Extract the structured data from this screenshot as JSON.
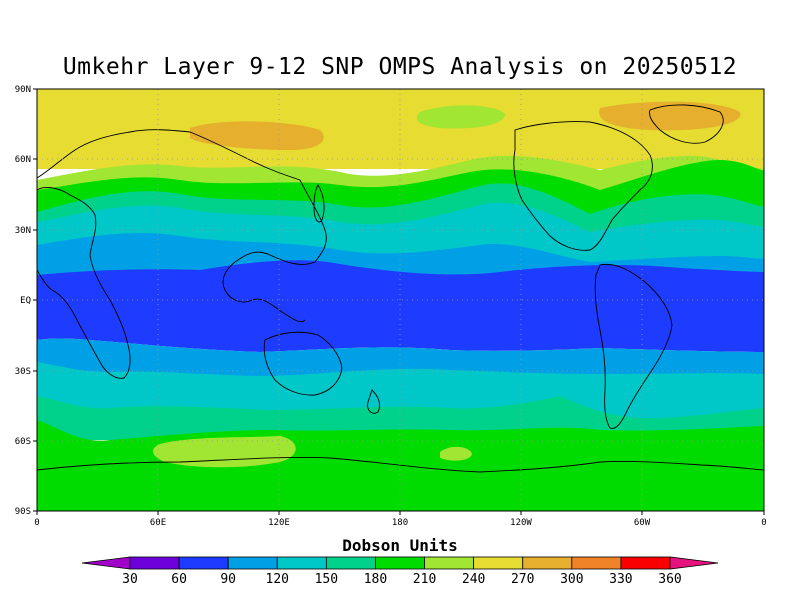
{
  "title": "Umkehr Layer 9-12 SNP OMPS Analysis on 20250512",
  "colorbar": {
    "title": "Dobson Units",
    "labels": [
      "30",
      "60",
      "90",
      "120",
      "150",
      "180",
      "210",
      "240",
      "270",
      "300",
      "330",
      "360"
    ],
    "colors": [
      "#a000c8",
      "#6e00dc",
      "#1e3cff",
      "#00a0e6",
      "#00c8c8",
      "#00d28c",
      "#00dc00",
      "#a0e632",
      "#e6dc32",
      "#e6af2d",
      "#f08228",
      "#fa0000",
      "#e6127d"
    ]
  },
  "axes": {
    "lat_labels": [
      "90N",
      "60N",
      "30N",
      "EQ",
      "30S",
      "60S",
      "90S"
    ],
    "lon_labels": [
      "0",
      "60E",
      "120E",
      "180",
      "120W",
      "60W",
      "0"
    ]
  },
  "chart_data": {
    "type": "heatmap",
    "title": "Umkehr Layer 9-12 SNP OMPS Analysis on 20250512",
    "colorbar_label": "Dobson Units",
    "x_range": [
      0,
      360
    ],
    "y_range": [
      -90,
      90
    ],
    "grid": true,
    "bands": [
      {
        "lat_range": [
          60,
          90
        ],
        "value": 255
      },
      {
        "lat_range": [
          45,
          60
        ],
        "value": 225
      },
      {
        "lat_range": [
          35,
          45
        ],
        "value": 195
      },
      {
        "lat_range": [
          28,
          35
        ],
        "value": 165
      },
      {
        "lat_range": [
          20,
          28
        ],
        "value": 135
      },
      {
        "lat_range": [
          12,
          20
        ],
        "value": 105
      },
      {
        "lat_range": [
          -18,
          12
        ],
        "value": 75
      },
      {
        "lat_range": [
          -30,
          -18
        ],
        "value": 105
      },
      {
        "lat_range": [
          -45,
          -30
        ],
        "value": 135
      },
      {
        "lat_range": [
          -55,
          -45
        ],
        "value": 165
      },
      {
        "lat_range": [
          -90,
          -55
        ],
        "value": 195
      }
    ]
  }
}
